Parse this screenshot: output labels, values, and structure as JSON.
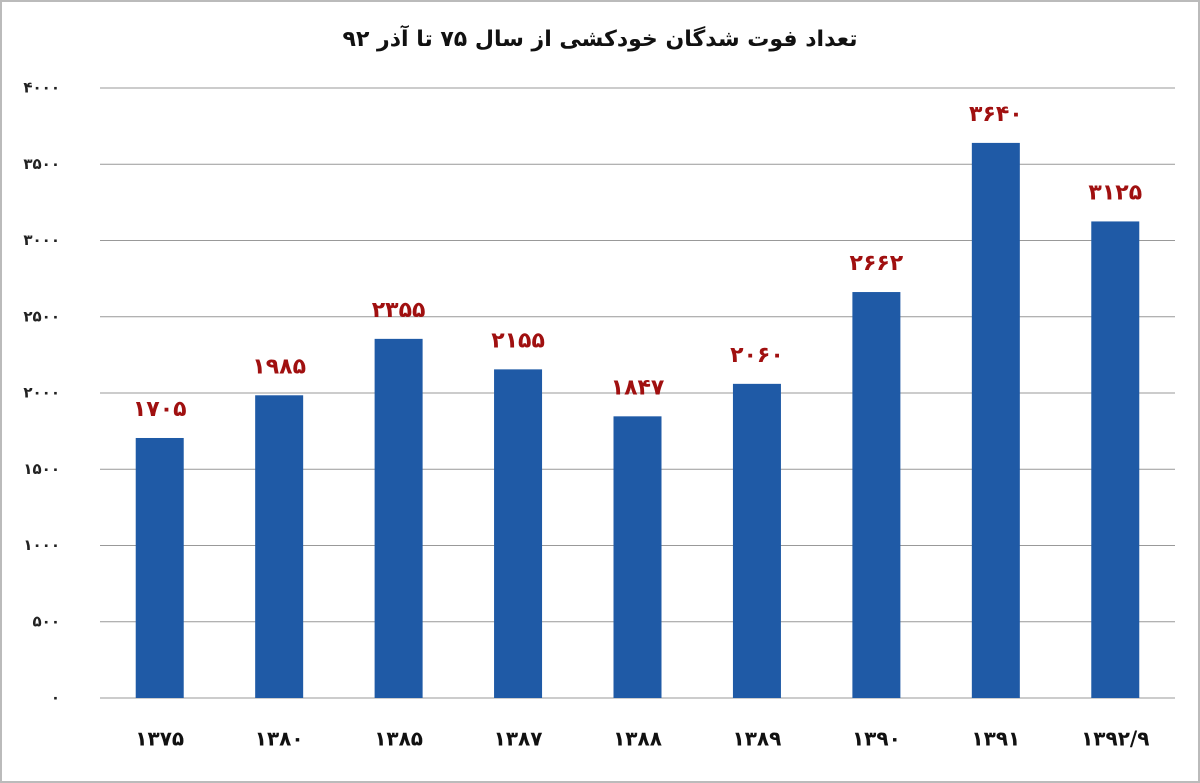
{
  "chart_data": {
    "type": "bar",
    "title": "تعداد فوت شدگان خودکشی از سال ۷۵ تا آذر ۹۲",
    "categories": [
      "۱۳۷۵",
      "۱۳۸۰",
      "۱۳۸۵",
      "۱۳۸۷",
      "۱۳۸۸",
      "۱۳۸۹",
      "۱۳۹۰",
      "۱۳۹۱",
      "۱۳۹۲/۹"
    ],
    "values": [
      1705,
      1985,
      2355,
      2155,
      1847,
      2060,
      2662,
      3640,
      3125
    ],
    "value_labels": [
      "۱۷۰۵",
      "۱۹۸۵",
      "۲۳۵۵",
      "۲۱۵۵",
      "۱۸۴۷",
      "۲۰۶۰",
      "۲۶۶۲",
      "۳۶۴۰",
      "۳۱۲۵"
    ],
    "color": "#1f5aa6",
    "ylim": [
      0,
      4000
    ],
    "yticks": [
      {
        "value": 0,
        "label": "۰"
      },
      {
        "value": 500,
        "label": "۵۰۰"
      },
      {
        "value": 1000,
        "label": "۱۰۰۰"
      },
      {
        "value": 1500,
        "label": "۱۵۰۰"
      },
      {
        "value": 2000,
        "label": "۲۰۰۰"
      },
      {
        "value": 2500,
        "label": "۲۵۰۰"
      },
      {
        "value": 3000,
        "label": "۳۰۰۰"
      },
      {
        "value": 3500,
        "label": "۳۵۰۰"
      },
      {
        "value": 4000,
        "label": "۴۰۰۰"
      }
    ],
    "grid": true
  }
}
